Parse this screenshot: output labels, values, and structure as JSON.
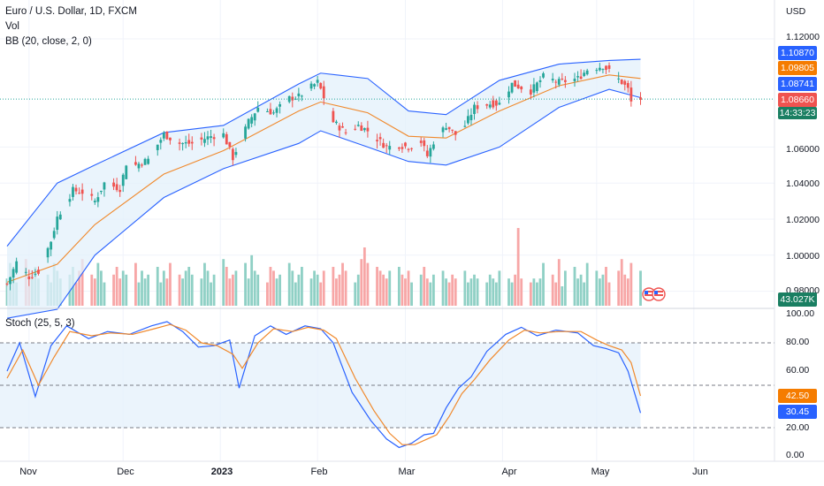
{
  "header": {
    "symbol_title": "Euro / U.S. Dollar, 1D, FXCM",
    "volume_label": "Vol",
    "bb_label": "BB (20, close, 2, 0)",
    "stoch_label": "Stoch (25, 5, 3)",
    "currency": "USD"
  },
  "price_axis": {
    "ticks": [
      "1.12000",
      "1.06000",
      "1.04000",
      "1.02000",
      "1.00000",
      "0.98000"
    ],
    "badges": {
      "bb_upper": "1.10870",
      "bb_basis": "1.09805",
      "bb_lower": "1.08741",
      "last_price": "1.08660",
      "countdown": "14:33:23",
      "volume": "43.027K"
    }
  },
  "stoch_axis": {
    "ticks": [
      "100.00",
      "80.00",
      "60.00",
      "20.00",
      "0.00"
    ],
    "badges": {
      "d": "42.50",
      "k": "30.45"
    }
  },
  "time_axis": [
    "Nov",
    "Dec",
    "2023",
    "Feb",
    "Mar",
    "Apr",
    "May",
    "Jun"
  ],
  "colors": {
    "up": "#26a69a",
    "down": "#ef5350",
    "vol_up": "#8fd0c5",
    "vol_down": "#f7a6a6",
    "bb_band": "#2962ff",
    "bb_basis": "#f0892c",
    "bb_fill": "#e3f0fb",
    "stoch_k": "#2962ff",
    "stoch_d": "#f0892c",
    "stoch_fill": "#e3f0fb",
    "countdown_bg": "#1a7f62"
  },
  "chart_data": [
    {
      "type": "candlestick",
      "title": "Euro / U.S. Dollar, 1D, FXCM",
      "ylabel": "USD",
      "x_range": [
        "2022-10-25",
        "2023-06-15"
      ],
      "ylim": [
        0.975,
        1.125
      ],
      "close_path": [
        [
          "2022-10-25",
          0.984
        ],
        [
          "2022-10-28",
          0.996
        ],
        [
          "2022-11-01",
          0.988
        ],
        [
          "2022-11-04",
          0.991
        ],
        [
          "2022-11-08",
          1.008
        ],
        [
          "2022-11-10",
          1.021
        ],
        [
          "2022-11-15",
          1.036
        ],
        [
          "2022-11-18",
          1.035
        ],
        [
          "2022-11-22",
          1.03
        ],
        [
          "2022-11-25",
          1.04
        ],
        [
          "2022-11-30",
          1.037
        ],
        [
          "2022-12-02",
          1.051
        ],
        [
          "2022-12-05",
          1.05
        ],
        [
          "2022-12-09",
          1.053
        ],
        [
          "2022-12-14",
          1.067
        ],
        [
          "2022-12-19",
          1.062
        ],
        [
          "2022-12-23",
          1.062
        ],
        [
          "2022-12-29",
          1.066
        ],
        [
          "2023-01-02",
          1.067
        ],
        [
          "2023-01-05",
          1.054
        ],
        [
          "2023-01-10",
          1.074
        ],
        [
          "2023-01-13",
          1.082
        ],
        [
          "2023-01-18",
          1.079
        ],
        [
          "2023-01-23",
          1.087
        ],
        [
          "2023-01-26",
          1.088
        ],
        [
          "2023-02-01",
          1.096
        ],
        [
          "2023-02-02",
          1.092
        ],
        [
          "2023-02-06",
          1.074
        ],
        [
          "2023-02-10",
          1.068
        ],
        [
          "2023-02-14",
          1.072
        ],
        [
          "2023-02-17",
          1.069
        ],
        [
          "2023-02-23",
          1.06
        ],
        [
          "2023-02-27",
          1.061
        ],
        [
          "2023-03-02",
          1.06
        ],
        [
          "2023-03-06",
          1.063
        ],
        [
          "2023-03-08",
          1.055
        ],
        [
          "2023-03-10",
          1.063
        ],
        [
          "2023-03-14",
          1.072
        ],
        [
          "2023-03-17",
          1.067
        ],
        [
          "2023-03-20",
          1.072
        ],
        [
          "2023-03-23",
          1.082
        ],
        [
          "2023-03-28",
          1.084
        ],
        [
          "2023-03-31",
          1.084
        ],
        [
          "2023-04-04",
          1.095
        ],
        [
          "2023-04-10",
          1.091
        ],
        [
          "2023-04-14",
          1.099
        ],
        [
          "2023-04-19",
          1.096
        ],
        [
          "2023-04-25",
          1.098
        ],
        [
          "2023-04-28",
          1.103
        ],
        [
          "2023-05-03",
          1.105
        ],
        [
          "2023-05-05",
          1.102
        ],
        [
          "2023-05-09",
          1.096
        ],
        [
          "2023-05-11",
          1.092
        ],
        [
          "2023-05-12",
          1.085
        ],
        [
          "2023-05-15",
          1.0866
        ]
      ],
      "bollinger": {
        "upper": [
          [
            "2022-10-25",
            1.005
          ],
          [
            "2022-11-10",
            1.04
          ],
          [
            "2022-11-22",
            1.05
          ],
          [
            "2022-12-14",
            1.068
          ],
          [
            "2023-01-02",
            1.072
          ],
          [
            "2023-01-26",
            1.095
          ],
          [
            "2023-02-02",
            1.101
          ],
          [
            "2023-02-17",
            1.098
          ],
          [
            "2023-03-02",
            1.08
          ],
          [
            "2023-03-14",
            1.078
          ],
          [
            "2023-03-31",
            1.097
          ],
          [
            "2023-04-19",
            1.106
          ],
          [
            "2023-05-05",
            1.108
          ],
          [
            "2023-05-15",
            1.1087
          ]
        ],
        "basis": [
          [
            "2022-10-25",
            0.985
          ],
          [
            "2022-11-10",
            0.995
          ],
          [
            "2022-11-22",
            1.017
          ],
          [
            "2022-12-14",
            1.045
          ],
          [
            "2023-01-02",
            1.058
          ],
          [
            "2023-01-26",
            1.08
          ],
          [
            "2023-02-02",
            1.085
          ],
          [
            "2023-02-17",
            1.079
          ],
          [
            "2023-03-02",
            1.066
          ],
          [
            "2023-03-14",
            1.065
          ],
          [
            "2023-03-31",
            1.08
          ],
          [
            "2023-04-19",
            1.094
          ],
          [
            "2023-05-05",
            1.1
          ],
          [
            "2023-05-15",
            1.09805
          ]
        ],
        "lower": [
          [
            "2022-10-25",
            0.965
          ],
          [
            "2022-11-10",
            0.97
          ],
          [
            "2022-11-22",
            1.0
          ],
          [
            "2022-12-14",
            1.032
          ],
          [
            "2023-01-02",
            1.048
          ],
          [
            "2023-01-26",
            1.062
          ],
          [
            "2023-02-02",
            1.069
          ],
          [
            "2023-02-17",
            1.06
          ],
          [
            "2023-03-02",
            1.052
          ],
          [
            "2023-03-14",
            1.05
          ],
          [
            "2023-03-31",
            1.06
          ],
          [
            "2023-04-19",
            1.082
          ],
          [
            "2023-05-05",
            1.092
          ],
          [
            "2023-05-15",
            1.08741
          ]
        ]
      },
      "last_price": 1.0866
    },
    {
      "type": "bar",
      "title": "Vol",
      "last_value": "43.027K",
      "relative_volume": [
        0.35,
        0.55,
        0.4,
        0.3,
        0.6,
        0.25,
        0.45,
        0.5,
        0.35,
        0.4,
        0.3,
        0.55,
        0.45,
        0.35,
        0.4,
        0.5,
        0.3,
        0.45,
        0.6,
        0.4,
        0.35,
        0.55,
        0.45,
        0.3,
        0.4,
        0.5,
        0.35,
        0.45,
        0.4,
        0.55,
        0.3,
        0.45,
        0.35,
        0.4,
        0.5,
        0.3,
        0.45,
        0.35,
        0.55,
        0.4,
        0.35,
        0.45,
        0.5,
        0.4,
        0.35,
        0.55,
        0.45,
        0.3,
        0.4,
        0.6,
        0.5,
        0.35,
        0.4,
        0.45,
        0.55,
        0.35,
        0.65,
        0.45,
        0.4,
        0.3,
        0.5,
        0.45,
        0.35,
        0.4,
        0.55,
        0.45,
        0.3,
        0.4,
        0.5,
        0.35,
        0.45,
        0.4,
        0.3,
        0.45,
        0.5,
        0.35,
        0.4,
        0.55,
        0.45,
        0.3,
        0.4,
        0.6,
        0.75,
        0.55,
        0.5,
        0.45,
        0.4,
        0.35,
        0.45,
        0.5,
        0.4,
        0.35,
        0.45,
        0.3,
        0.4,
        0.5,
        0.35,
        0.3,
        0.4,
        0.45,
        0.35,
        0.3,
        0.4,
        0.35,
        0.45,
        0.3,
        0.35,
        0.4,
        0.35,
        0.3,
        0.4,
        0.35,
        0.3,
        0.45,
        0.35,
        0.3,
        0.4,
        1.0,
        0.35,
        0.3,
        0.35,
        0.3
      ]
    },
    {
      "type": "line",
      "title": "Stoch (25, 5, 3)",
      "ylim": [
        0,
        100
      ],
      "guides": [
        80,
        50,
        20
      ],
      "series": [
        {
          "name": "%K",
          "points": [
            [
              "2022-10-25",
              60
            ],
            [
              "2022-10-29",
              80
            ],
            [
              "2022-11-03",
              42
            ],
            [
              "2022-11-08",
              78
            ],
            [
              "2022-11-13",
              92
            ],
            [
              "2022-11-20",
              83
            ],
            [
              "2022-11-26",
              88
            ],
            [
              "2022-12-03",
              86
            ],
            [
              "2022-12-10",
              92
            ],
            [
              "2022-12-15",
              95
            ],
            [
              "2022-12-20",
              88
            ],
            [
              "2022-12-25",
              77
            ],
            [
              "2022-12-30",
              78
            ],
            [
              "2023-01-04",
              82
            ],
            [
              "2023-01-07",
              48
            ],
            [
              "2023-01-12",
              85
            ],
            [
              "2023-01-17",
              92
            ],
            [
              "2023-01-22",
              86
            ],
            [
              "2023-01-28",
              92
            ],
            [
              "2023-02-02",
              90
            ],
            [
              "2023-02-06",
              80
            ],
            [
              "2023-02-12",
              45
            ],
            [
              "2023-02-18",
              25
            ],
            [
              "2023-02-23",
              12
            ],
            [
              "2023-02-27",
              6
            ],
            [
              "2023-03-03",
              9
            ],
            [
              "2023-03-07",
              15
            ],
            [
              "2023-03-10",
              16
            ],
            [
              "2023-03-14",
              34
            ],
            [
              "2023-03-18",
              48
            ],
            [
              "2023-03-22",
              56
            ],
            [
              "2023-03-27",
              74
            ],
            [
              "2023-04-02",
              86
            ],
            [
              "2023-04-07",
              91
            ],
            [
              "2023-04-12",
              85
            ],
            [
              "2023-04-18",
              89
            ],
            [
              "2023-04-25",
              87
            ],
            [
              "2023-04-30",
              78
            ],
            [
              "2023-05-04",
              76
            ],
            [
              "2023-05-08",
              73
            ],
            [
              "2023-05-11",
              60
            ],
            [
              "2023-05-15",
              30.45
            ]
          ]
        },
        {
          "name": "%D",
          "points": [
            [
              "2022-10-25",
              55
            ],
            [
              "2022-10-30",
              75
            ],
            [
              "2022-11-04",
              50
            ],
            [
              "2022-11-09",
              70
            ],
            [
              "2022-11-14",
              88
            ],
            [
              "2022-11-21",
              85
            ],
            [
              "2022-11-27",
              87
            ],
            [
              "2022-12-04",
              86
            ],
            [
              "2022-12-11",
              90
            ],
            [
              "2022-12-16",
              93
            ],
            [
              "2022-12-21",
              89
            ],
            [
              "2022-12-26",
              80
            ],
            [
              "2022-12-31",
              78
            ],
            [
              "2023-01-05",
              72
            ],
            [
              "2023-01-08",
              62
            ],
            [
              "2023-01-13",
              80
            ],
            [
              "2023-01-18",
              90
            ],
            [
              "2023-01-24",
              88
            ],
            [
              "2023-01-29",
              91
            ],
            [
              "2023-02-03",
              89
            ],
            [
              "2023-02-07",
              83
            ],
            [
              "2023-02-13",
              55
            ],
            [
              "2023-02-19",
              32
            ],
            [
              "2023-02-24",
              16
            ],
            [
              "2023-02-28",
              8
            ],
            [
              "2023-03-04",
              8
            ],
            [
              "2023-03-08",
              12
            ],
            [
              "2023-03-11",
              15
            ],
            [
              "2023-03-15",
              28
            ],
            [
              "2023-03-19",
              44
            ],
            [
              "2023-03-23",
              54
            ],
            [
              "2023-03-28",
              68
            ],
            [
              "2023-04-03",
              82
            ],
            [
              "2023-04-08",
              89
            ],
            [
              "2023-04-13",
              87
            ],
            [
              "2023-04-19",
              88
            ],
            [
              "2023-04-26",
              88
            ],
            [
              "2023-05-01",
              82
            ],
            [
              "2023-05-05",
              78
            ],
            [
              "2023-05-09",
              75
            ],
            [
              "2023-05-12",
              66
            ],
            [
              "2023-05-15",
              42.5
            ]
          ]
        }
      ]
    }
  ]
}
